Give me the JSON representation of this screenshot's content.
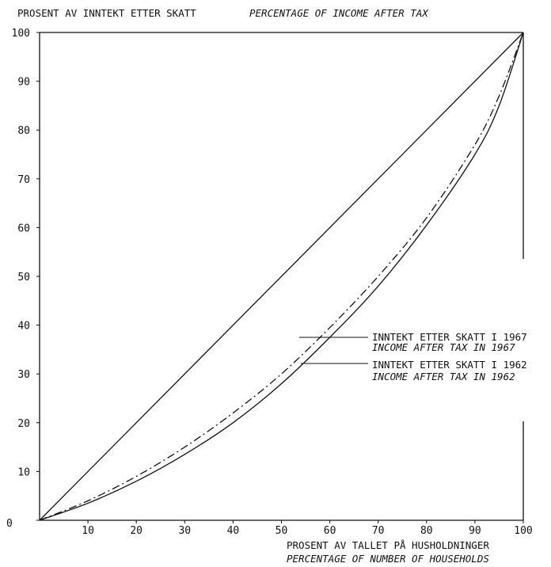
{
  "chart_data": {
    "type": "line",
    "ylabel_no": "PROSENT AV INNTEKT ETTER SKATT",
    "ylabel_en": "PERCENTAGE OF INCOME AFTER TAX",
    "xlabel_no": "PROSENT AV TALLET PÅ HUSHOLDNINGER",
    "xlabel_en": "PERCENTAGE OF NUMBER OF HOUSEHOLDS",
    "xlim": [
      0,
      100
    ],
    "ylim": [
      0,
      100
    ],
    "xticks": [
      0,
      10,
      20,
      30,
      40,
      50,
      60,
      70,
      80,
      90,
      100
    ],
    "yticks": [
      0,
      10,
      20,
      30,
      40,
      50,
      60,
      70,
      80,
      90,
      100
    ],
    "grid": false,
    "series": [
      {
        "name": "equality",
        "style": "solid",
        "x": [
          0,
          100
        ],
        "y": [
          0,
          100
        ]
      },
      {
        "name": "INNTEKT ETTER SKATT I 1967",
        "name_en": "INCOME AFTER TAX IN 1967",
        "style": "dashdot",
        "x": [
          0,
          10,
          20,
          30,
          40,
          50,
          60,
          70,
          80,
          90,
          95,
          100
        ],
        "y": [
          0,
          4,
          9,
          15,
          22,
          30,
          39.5,
          50,
          62,
          77,
          87,
          100
        ]
      },
      {
        "name": "INNTEKT ETTER SKATT I 1962",
        "name_en": "INCOME AFTER TAX IN 1962",
        "style": "solid",
        "x": [
          0,
          10,
          20,
          30,
          40,
          50,
          60,
          70,
          80,
          90,
          95,
          100
        ],
        "y": [
          0,
          3.5,
          8,
          13.5,
          20,
          28,
          37.5,
          48,
          60.5,
          75,
          85,
          100
        ]
      }
    ]
  }
}
